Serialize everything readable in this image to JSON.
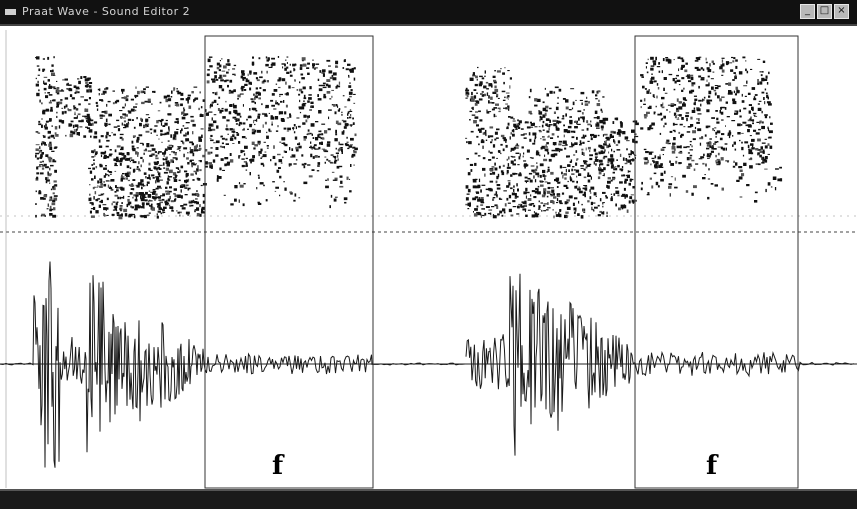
{
  "window": {
    "title": "Praat Wave - Sound Editor 2",
    "controls": [
      "_",
      "□",
      "×"
    ]
  },
  "panels": [
    {
      "frame_label": "f"
    },
    {
      "frame_label": "f"
    }
  ],
  "colors": {
    "titlebar": "#111111",
    "waveform": "#1a1a1a",
    "frame": "#333333",
    "background": "#ffffff"
  }
}
